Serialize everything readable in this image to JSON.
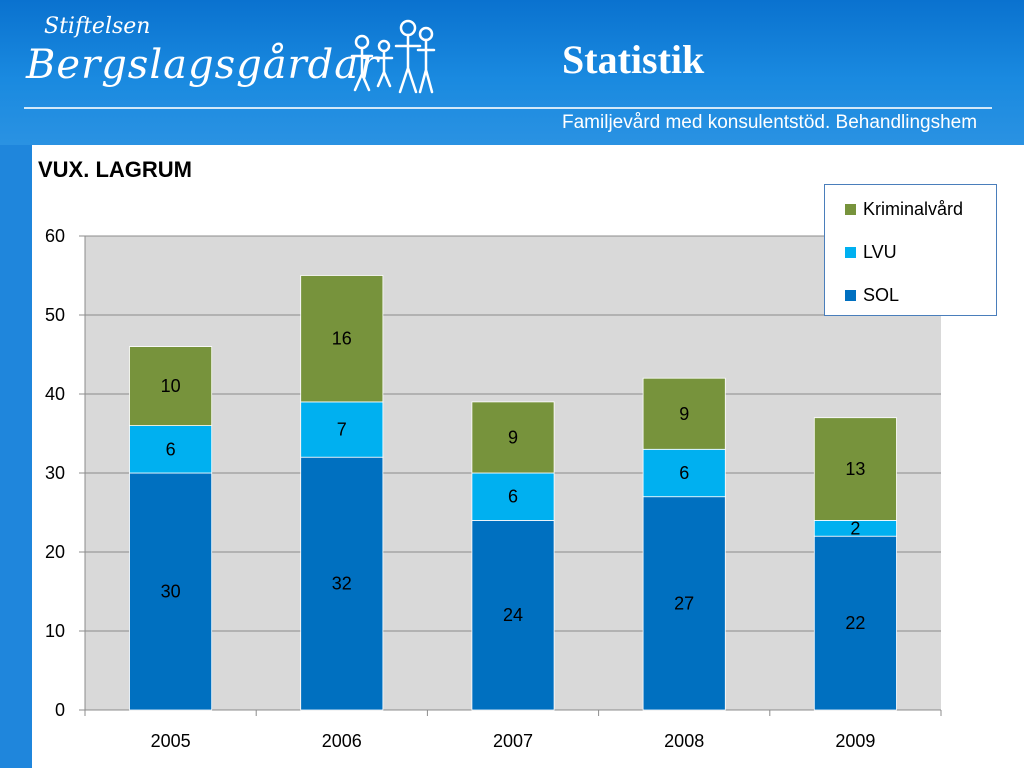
{
  "header": {
    "brand_small": "Stiftelsen",
    "brand_big": "Bergslagsgårdar",
    "title": "Statistik",
    "tagline": "Familjevård med konsulentstöd. Behandlingshem"
  },
  "chart_data": {
    "type": "bar",
    "stacked": true,
    "title": "VUX.  LAGRUM",
    "categories": [
      "2005",
      "2006",
      "2007",
      "2008",
      "2009"
    ],
    "series": [
      {
        "name": "SOL",
        "color": "#0070c0",
        "values": [
          30,
          32,
          24,
          27,
          22
        ]
      },
      {
        "name": "LVU",
        "color": "#00b0f0",
        "values": [
          6,
          7,
          6,
          6,
          2
        ]
      },
      {
        "name": "Kriminalvård",
        "color": "#77933c",
        "values": [
          10,
          16,
          9,
          9,
          13
        ]
      }
    ],
    "ylim": [
      0,
      60
    ],
    "yticks": [
      0,
      10,
      20,
      30,
      40,
      50,
      60
    ],
    "grid": true,
    "legend": "top-right",
    "legend_order": [
      "Kriminalvård",
      "LVU",
      "SOL"
    ]
  }
}
